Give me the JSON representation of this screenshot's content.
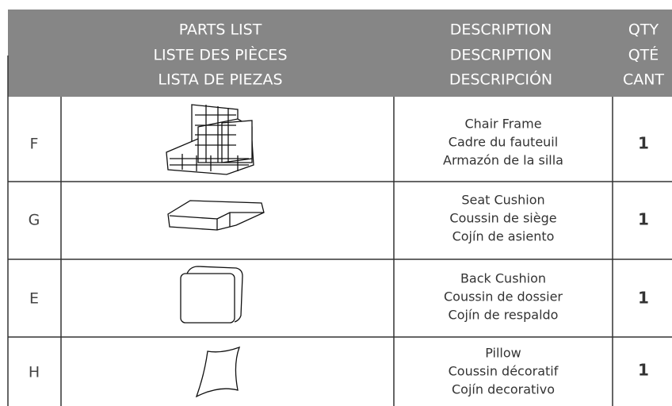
{
  "header": {
    "parts_list": [
      "PARTS LIST",
      "LISTE DES PIÈCES",
      "LISTA DE PIEZAS"
    ],
    "description": [
      "DESCRIPTION",
      "DESCRIPTION",
      "DESCRIPCIÓN"
    ],
    "qty": [
      "QTY",
      "QTÉ",
      "CANT"
    ]
  },
  "table": {
    "rows": [
      {
        "letter": "F",
        "description": [
          "Chair Frame",
          "Cadre du fauteuil",
          "Armazón de la silla"
        ],
        "qty": 1
      },
      {
        "letter": "G",
        "description": [
          "Seat Cushion",
          "Coussin de siège",
          "Cojín de asiento"
        ],
        "qty": 1
      },
      {
        "letter": "E",
        "description": [
          "Back Cushion",
          "Coussin de dossier",
          "Cojín de respaldo"
        ],
        "qty": 1
      },
      {
        "letter": "H",
        "description": [
          "Pillow",
          "Coussin décoratif",
          "Cojín decorativo"
        ],
        "qty": 1
      }
    ]
  }
}
